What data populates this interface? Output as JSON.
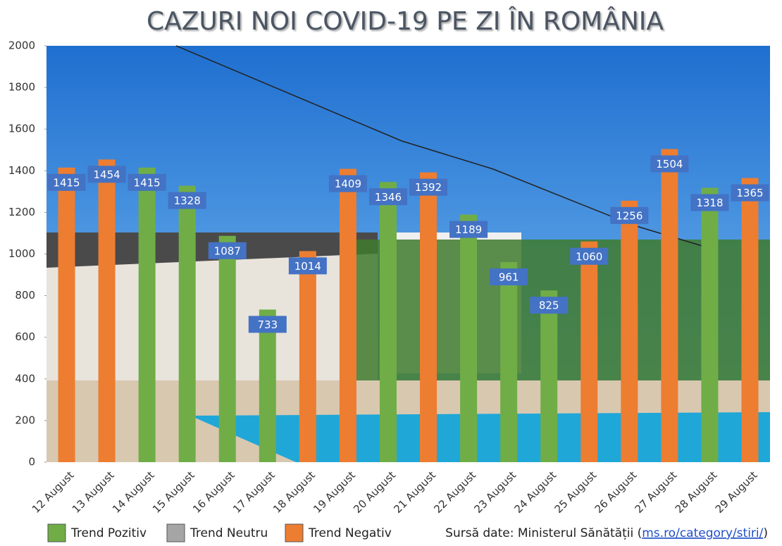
{
  "chart_data": {
    "type": "bar",
    "title": "CAZURI NOI COVID-19 PE ZI ÎN ROMÂNIA",
    "categories": [
      "12 August",
      "13 August",
      "14 August",
      "15 August",
      "16 August",
      "17 August",
      "18 August",
      "19 August",
      "20 August",
      "21 August",
      "22 August",
      "23 August",
      "24 August",
      "25 August",
      "26 August",
      "27 August",
      "28 August",
      "29 August"
    ],
    "values": [
      1415,
      1454,
      1415,
      1328,
      1087,
      733,
      1014,
      1409,
      1346,
      1392,
      1189,
      961,
      825,
      1060,
      1256,
      1504,
      1318,
      1365
    ],
    "colors": [
      "#ed7d31",
      "#ed7d31",
      "#70ad47",
      "#70ad47",
      "#70ad47",
      "#70ad47",
      "#ed7d31",
      "#ed7d31",
      "#70ad47",
      "#ed7d31",
      "#70ad47",
      "#70ad47",
      "#70ad47",
      "#ed7d31",
      "#ed7d31",
      "#ed7d31",
      "#70ad47",
      "#ed7d31"
    ],
    "label_color": "#4472c4",
    "ylim": [
      0,
      2000
    ],
    "yticks": [
      0,
      200,
      400,
      600,
      800,
      1000,
      1200,
      1400,
      1600,
      1800,
      2000
    ],
    "legend": [
      {
        "name": "Trend Pozitiv",
        "color": "#70ad47"
      },
      {
        "name": "Trend Neutru",
        "color": "#a5a5a5"
      },
      {
        "name": "Trend Negativ",
        "color": "#ed7d31"
      }
    ],
    "source": {
      "text": "Sursă date: Ministerul Sănătății (",
      "link": "ms.ro/category/stiri/",
      "close": ")"
    }
  }
}
